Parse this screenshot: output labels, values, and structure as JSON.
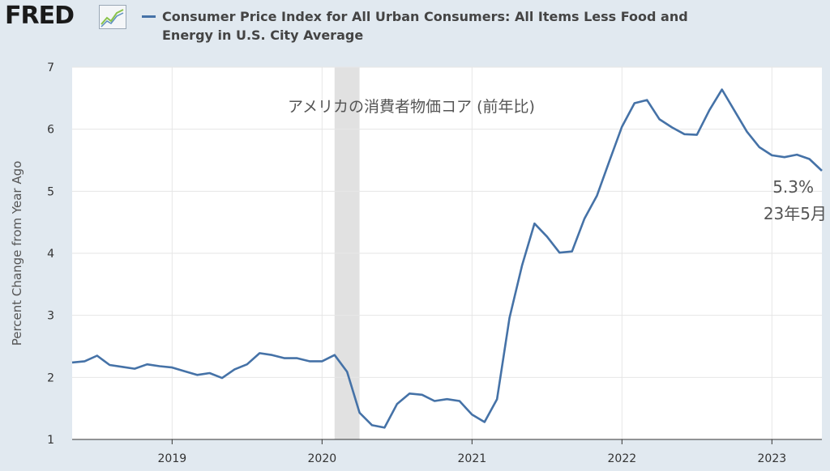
{
  "header": {
    "logo_text": "FRED",
    "series_title_line1": "Consumer Price Index for All Urban Consumers: All Items Less Food and",
    "series_title_line2": "Energy in U.S. City Average",
    "series_color": "#4572a7"
  },
  "annotations": {
    "title": "アメリカの消費者物価コア (前年比)",
    "last_value": "5.3%",
    "last_date": "23年5月"
  },
  "chart_data": {
    "type": "line",
    "title": "Consumer Price Index for All Urban Consumers: All Items Less Food and Energy in U.S. City Average",
    "ylabel": "Percent Change from Year Ago",
    "xlabel": "",
    "ylim": [
      1,
      7
    ],
    "yticks": [
      1,
      2,
      3,
      4,
      5,
      6,
      7
    ],
    "xticks": [
      "2019",
      "2020",
      "2021",
      "2022",
      "2023"
    ],
    "grid": true,
    "recession_shading": [
      "2020-02",
      "2020-04"
    ],
    "series": [
      {
        "name": "Consumer Price Index for All Urban Consumers: All Items Less Food and Energy in U.S. City Average",
        "x": [
          "2018-05",
          "2018-06",
          "2018-07",
          "2018-08",
          "2018-09",
          "2018-10",
          "2018-11",
          "2018-12",
          "2019-01",
          "2019-02",
          "2019-03",
          "2019-04",
          "2019-05",
          "2019-06",
          "2019-07",
          "2019-08",
          "2019-09",
          "2019-10",
          "2019-11",
          "2019-12",
          "2020-01",
          "2020-02",
          "2020-03",
          "2020-04",
          "2020-05",
          "2020-06",
          "2020-07",
          "2020-08",
          "2020-09",
          "2020-10",
          "2020-11",
          "2020-12",
          "2021-01",
          "2021-02",
          "2021-03",
          "2021-04",
          "2021-05",
          "2021-06",
          "2021-07",
          "2021-08",
          "2021-09",
          "2021-10",
          "2021-11",
          "2021-12",
          "2022-01",
          "2022-02",
          "2022-03",
          "2022-04",
          "2022-05",
          "2022-06",
          "2022-07",
          "2022-08",
          "2022-09",
          "2022-10",
          "2022-11",
          "2022-12",
          "2023-01",
          "2023-02",
          "2023-03",
          "2023-04",
          "2023-05"
        ],
        "values": [
          2.24,
          2.26,
          2.35,
          2.2,
          2.17,
          2.14,
          2.21,
          2.18,
          2.16,
          2.1,
          2.04,
          2.07,
          1.99,
          2.13,
          2.21,
          2.39,
          2.36,
          2.31,
          2.31,
          2.26,
          2.26,
          2.36,
          2.09,
          1.43,
          1.23,
          1.19,
          1.57,
          1.74,
          1.72,
          1.62,
          1.65,
          1.62,
          1.4,
          1.28,
          1.65,
          2.96,
          3.8,
          4.48,
          4.27,
          4.01,
          4.03,
          4.56,
          4.93,
          5.49,
          6.04,
          6.42,
          6.47,
          6.16,
          6.03,
          5.92,
          5.91,
          6.31,
          6.64,
          6.3,
          5.96,
          5.71,
          5.58,
          5.55,
          5.59,
          5.52,
          5.33
        ]
      }
    ]
  }
}
